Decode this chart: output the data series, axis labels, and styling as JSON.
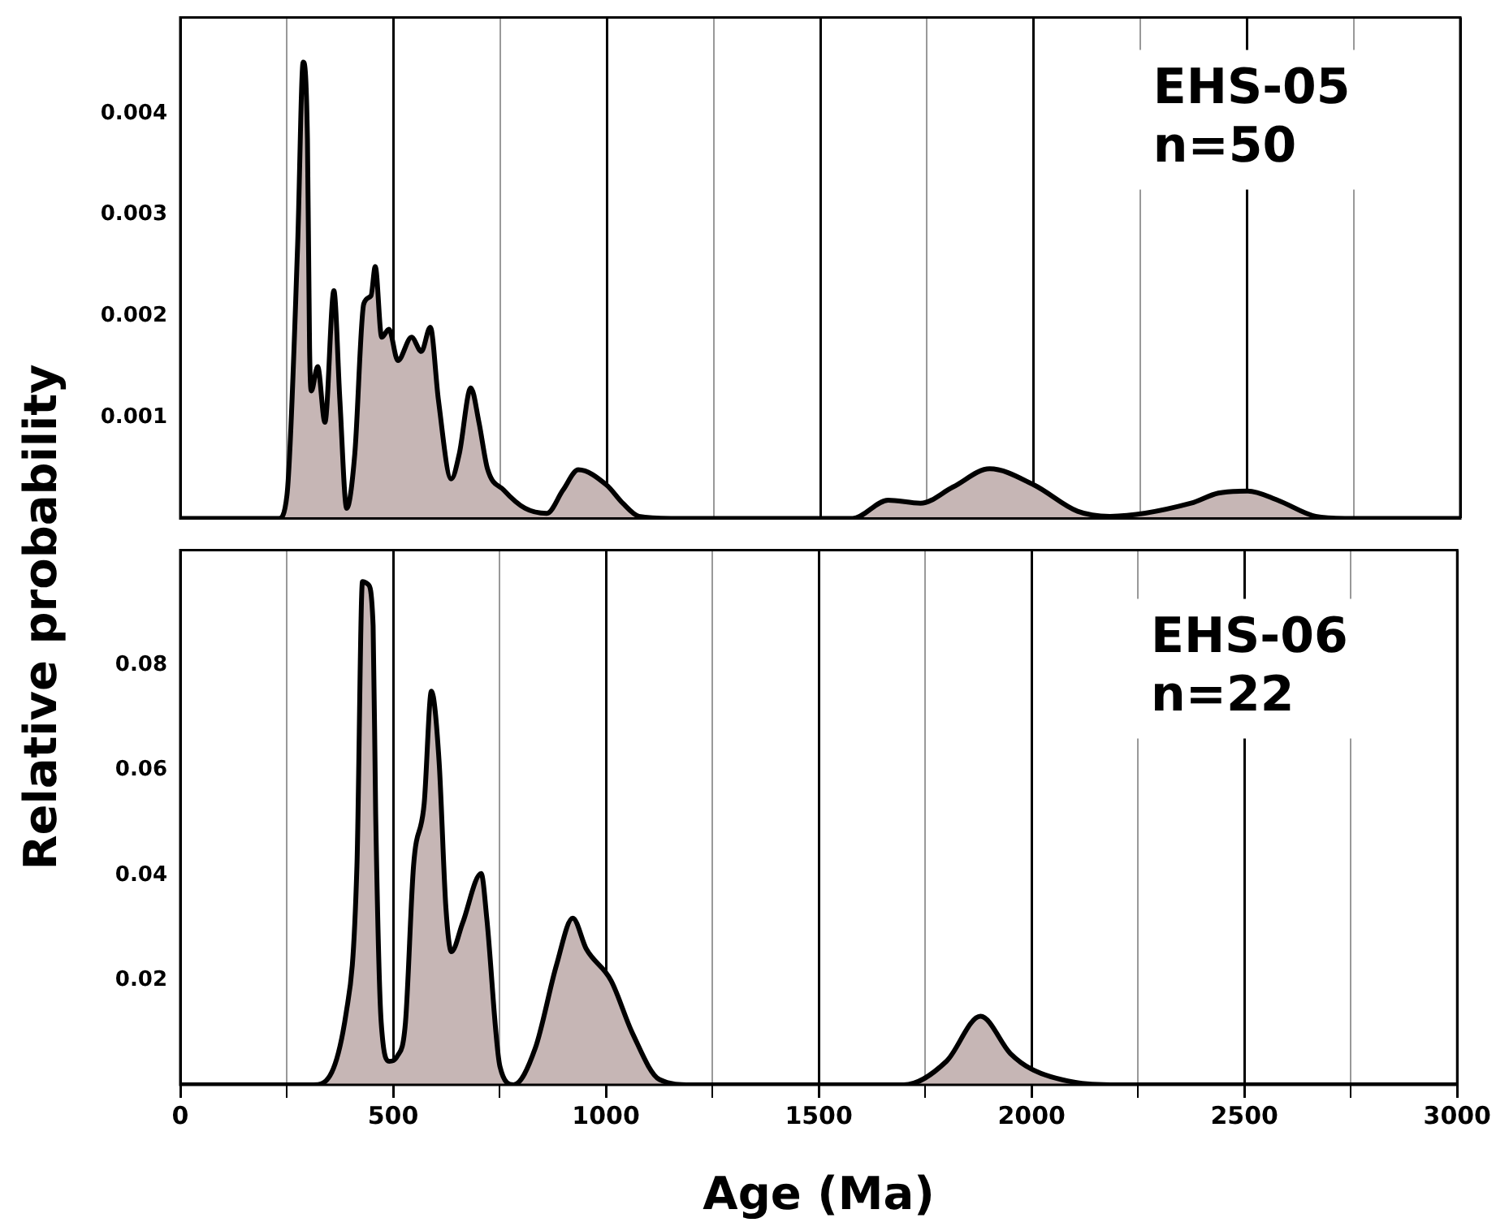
{
  "chart_data": [
    {
      "type": "area",
      "ylabel": "Relative probability",
      "annotations": [
        "EHS-05",
        "n=50"
      ],
      "color": "#c6b6b5",
      "grid": "x",
      "legend": false,
      "tick_labels": "y",
      "x": [
        0,
        231,
        250,
        275,
        288,
        298,
        303,
        307,
        322,
        339,
        360,
        374,
        390,
        409,
        430,
        447,
        457,
        472,
        489,
        510,
        542,
        565,
        586,
        605,
        635,
        654,
        681,
        700,
        720,
        758,
        808,
        859,
        897,
        933,
        999,
        1037,
        1075,
        1150,
        1500,
        1576,
        1659,
        1735,
        1811,
        1897,
        2001,
        2103,
        2179,
        2369,
        2433,
        2502,
        2572,
        2661,
        2730,
        3000
      ],
      "values": [
        0,
        0,
        0.00023,
        0.0027,
        0.00451,
        0.00375,
        0.00168,
        0.00126,
        0.0015,
        0.00095,
        0.00225,
        0.00117,
        0.0001,
        0.00064,
        0.00212,
        0.0022,
        0.00249,
        0.00179,
        0.00187,
        0.00156,
        0.00179,
        0.00165,
        0.00189,
        0.00117,
        0.00039,
        0.00064,
        0.00129,
        0.00095,
        0.00049,
        0.00028,
        0.0001,
        5e-05,
        0.00028,
        0.00048,
        0.00033,
        0.00015,
        2e-05,
        0,
        0,
        0,
        0.00018,
        0.00015,
        0.00031,
        0.00049,
        0.00033,
        7e-05,
        2e-05,
        0.00015,
        0.00025,
        0.00027,
        0.00018,
        2e-05,
        0,
        0
      ],
      "xlim": [
        0,
        3000
      ],
      "xticks": [
        0,
        {
          "value": 250,
          "label": null
        },
        500,
        {
          "value": 750,
          "label": null
        },
        1000,
        {
          "value": 1250,
          "label": null
        },
        1500,
        {
          "value": 1750,
          "label": null
        },
        2000,
        {
          "value": 2250,
          "label": null
        },
        2500,
        {
          "value": 2750,
          "label": null
        },
        3000
      ],
      "ylim": [
        0,
        0.00495
      ],
      "yticks": [
        0.001,
        0.002,
        0.003,
        0.004
      ]
    },
    {
      "type": "area",
      "xlabel": "Age (Ma)",
      "annotations": [
        "EHS-06",
        "n=22"
      ],
      "color": "#c6b6b5",
      "grid": "x",
      "legend": false,
      "x": [
        0,
        313,
        390,
        415,
        428,
        441,
        453,
        459,
        472,
        491,
        510,
        529,
        548,
        573,
        590,
        608,
        624,
        637,
        663,
        707,
        720,
        751,
        783,
        834,
        884,
        922,
        954,
        1012,
        1062,
        1126,
        1200,
        1700,
        1800,
        1880,
        1950,
        2000,
        2100,
        2200,
        3000
      ],
      "values": [
        0,
        0,
        0.0139,
        0.0418,
        0.096,
        0.0955,
        0.0876,
        0.0517,
        0.0119,
        0.0045,
        0.0055,
        0.0119,
        0.0418,
        0.0537,
        0.0751,
        0.0617,
        0.0338,
        0.0254,
        0.0308,
        0.0403,
        0.0318,
        0.0035,
        0,
        0.007,
        0.0229,
        0.0318,
        0.0259,
        0.0199,
        0.0099,
        0.001,
        0,
        0,
        0.0045,
        0.0131,
        0.006,
        0.003,
        0.0005,
        0,
        0
      ],
      "xlim": [
        0,
        3000
      ],
      "xticks": [
        0,
        {
          "value": 250,
          "label": null
        },
        500,
        {
          "value": 750,
          "label": null
        },
        1000,
        {
          "value": 1250,
          "label": null
        },
        1500,
        {
          "value": 1750,
          "label": null
        },
        2000,
        {
          "value": 2250,
          "label": null
        },
        2500,
        {
          "value": 2750,
          "label": null
        },
        3000
      ],
      "ylim": [
        0,
        0.102
      ],
      "yticks": [
        0.02,
        0.04,
        0.06,
        0.08
      ]
    }
  ]
}
